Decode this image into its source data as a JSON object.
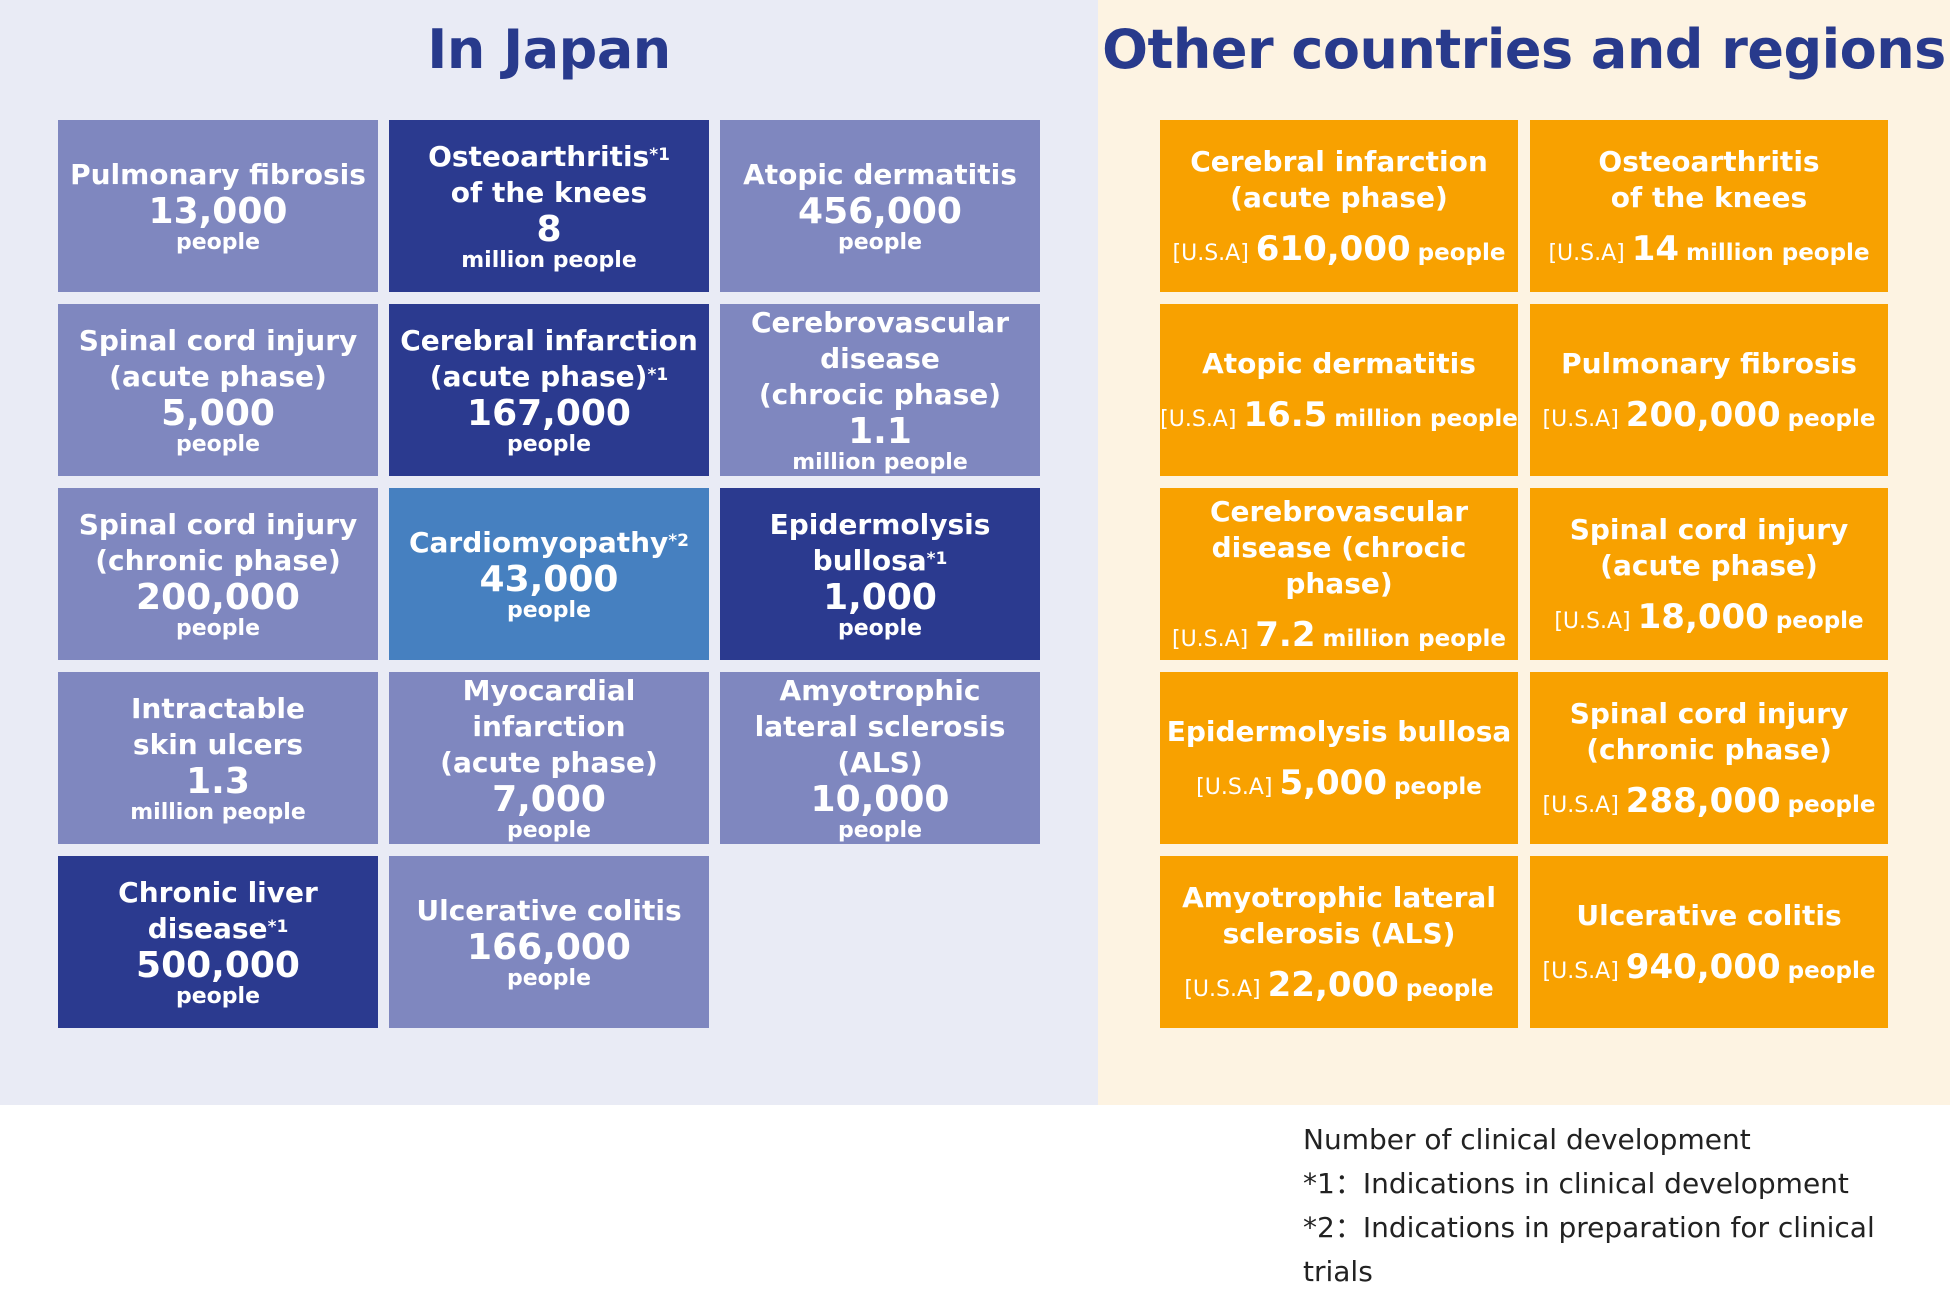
{
  "colors": {
    "japan_bg": "#e9ebf5",
    "other_bg": "#fdf3e2",
    "title": "#283a8c",
    "light": "#7f87bf",
    "dark": "#2b3a8f",
    "mid": "#4680c0",
    "orange": "#f8a100"
  },
  "japan": {
    "title": "In Japan",
    "items": [
      {
        "name": "Pulmonary fibrosis",
        "sup": "",
        "value": "13,000",
        "unit": "people",
        "shade": "light"
      },
      {
        "name": "Osteoarthritis*1|of the knees",
        "sup": "",
        "value": "8",
        "unit": "million people",
        "shade": "dark"
      },
      {
        "name": "Atopic dermatitis",
        "sup": "",
        "value": "456,000",
        "unit": "people",
        "shade": "light"
      },
      {
        "name": "Spinal cord injury|(acute phase)",
        "sup": "",
        "value": "5,000",
        "unit": "people",
        "shade": "light"
      },
      {
        "name": "Cerebral infarction|(acute phase)*1",
        "sup": "",
        "value": "167,000",
        "unit": "people",
        "shade": "dark"
      },
      {
        "name": "Cerebrovascular|disease|(chrocic phase)",
        "sup": "",
        "value": "1.1",
        "unit": "million people",
        "shade": "light"
      },
      {
        "name": "Spinal cord injury|(chronic phase)",
        "sup": "",
        "value": "200,000",
        "unit": "people",
        "shade": "light"
      },
      {
        "name": "Cardiomyopathy*2",
        "sup": "",
        "value": "43,000",
        "unit": "people",
        "shade": "mid"
      },
      {
        "name": "Epidermolysis|bullosa*1",
        "sup": "",
        "value": "1,000",
        "unit": "people",
        "shade": "dark"
      },
      {
        "name": "Intractable|skin ulcers",
        "sup": "",
        "value": "1.3",
        "unit": "million people",
        "shade": "light"
      },
      {
        "name": "Myocardial infarction|(acute phase)",
        "sup": "",
        "value": "7,000",
        "unit": "people",
        "shade": "light"
      },
      {
        "name": "Amyotrophic|lateral sclerosis (ALS)",
        "sup": "",
        "value": "10,000",
        "unit": "people",
        "shade": "light"
      },
      {
        "name": "Chronic liver disease*1",
        "sup": "",
        "value": "500,000",
        "unit": "people",
        "shade": "dark"
      },
      {
        "name": "Ulcerative colitis",
        "sup": "",
        "value": "166,000",
        "unit": "people",
        "shade": "light"
      }
    ]
  },
  "other": {
    "title": "Other countries and regions",
    "items": [
      {
        "name": "Cerebral infarction|(acute phase)",
        "region": "[U.S.A]",
        "value": "610,000",
        "unit": "people"
      },
      {
        "name": "Osteoarthritis|of the knees",
        "region": "[U.S.A]",
        "value": "14",
        "unit": "million people"
      },
      {
        "name": "Atopic dermatitis",
        "region": "[U.S.A]",
        "value": "16.5",
        "unit": "million people"
      },
      {
        "name": "Pulmonary fibrosis",
        "region": "[U.S.A]",
        "value": "200,000",
        "unit": "people"
      },
      {
        "name": "Cerebrovascular|disease (chrocic phase)",
        "region": "[U.S.A]",
        "value": "7.2",
        "unit": "million people"
      },
      {
        "name": "Spinal cord injury|(acute phase)",
        "region": "[U.S.A]",
        "value": "18,000",
        "unit": "people"
      },
      {
        "name": "Epidermolysis bullosa",
        "region": "[U.S.A]",
        "value": "5,000",
        "unit": "people"
      },
      {
        "name": "Spinal cord injury|(chronic phase)",
        "region": "[U.S.A]",
        "value": "288,000",
        "unit": "people"
      },
      {
        "name": "Amyotrophic lateral|sclerosis (ALS)",
        "region": "[U.S.A]",
        "value": "22,000",
        "unit": "people"
      },
      {
        "name": "Ulcerative colitis",
        "region": "[U.S.A]",
        "value": "940,000",
        "unit": "people"
      }
    ]
  },
  "legend": {
    "line1": "Number of clinical development",
    "line2": "*1：Indications in clinical development",
    "line3": "*2：Indications in preparation for clinical trials"
  }
}
